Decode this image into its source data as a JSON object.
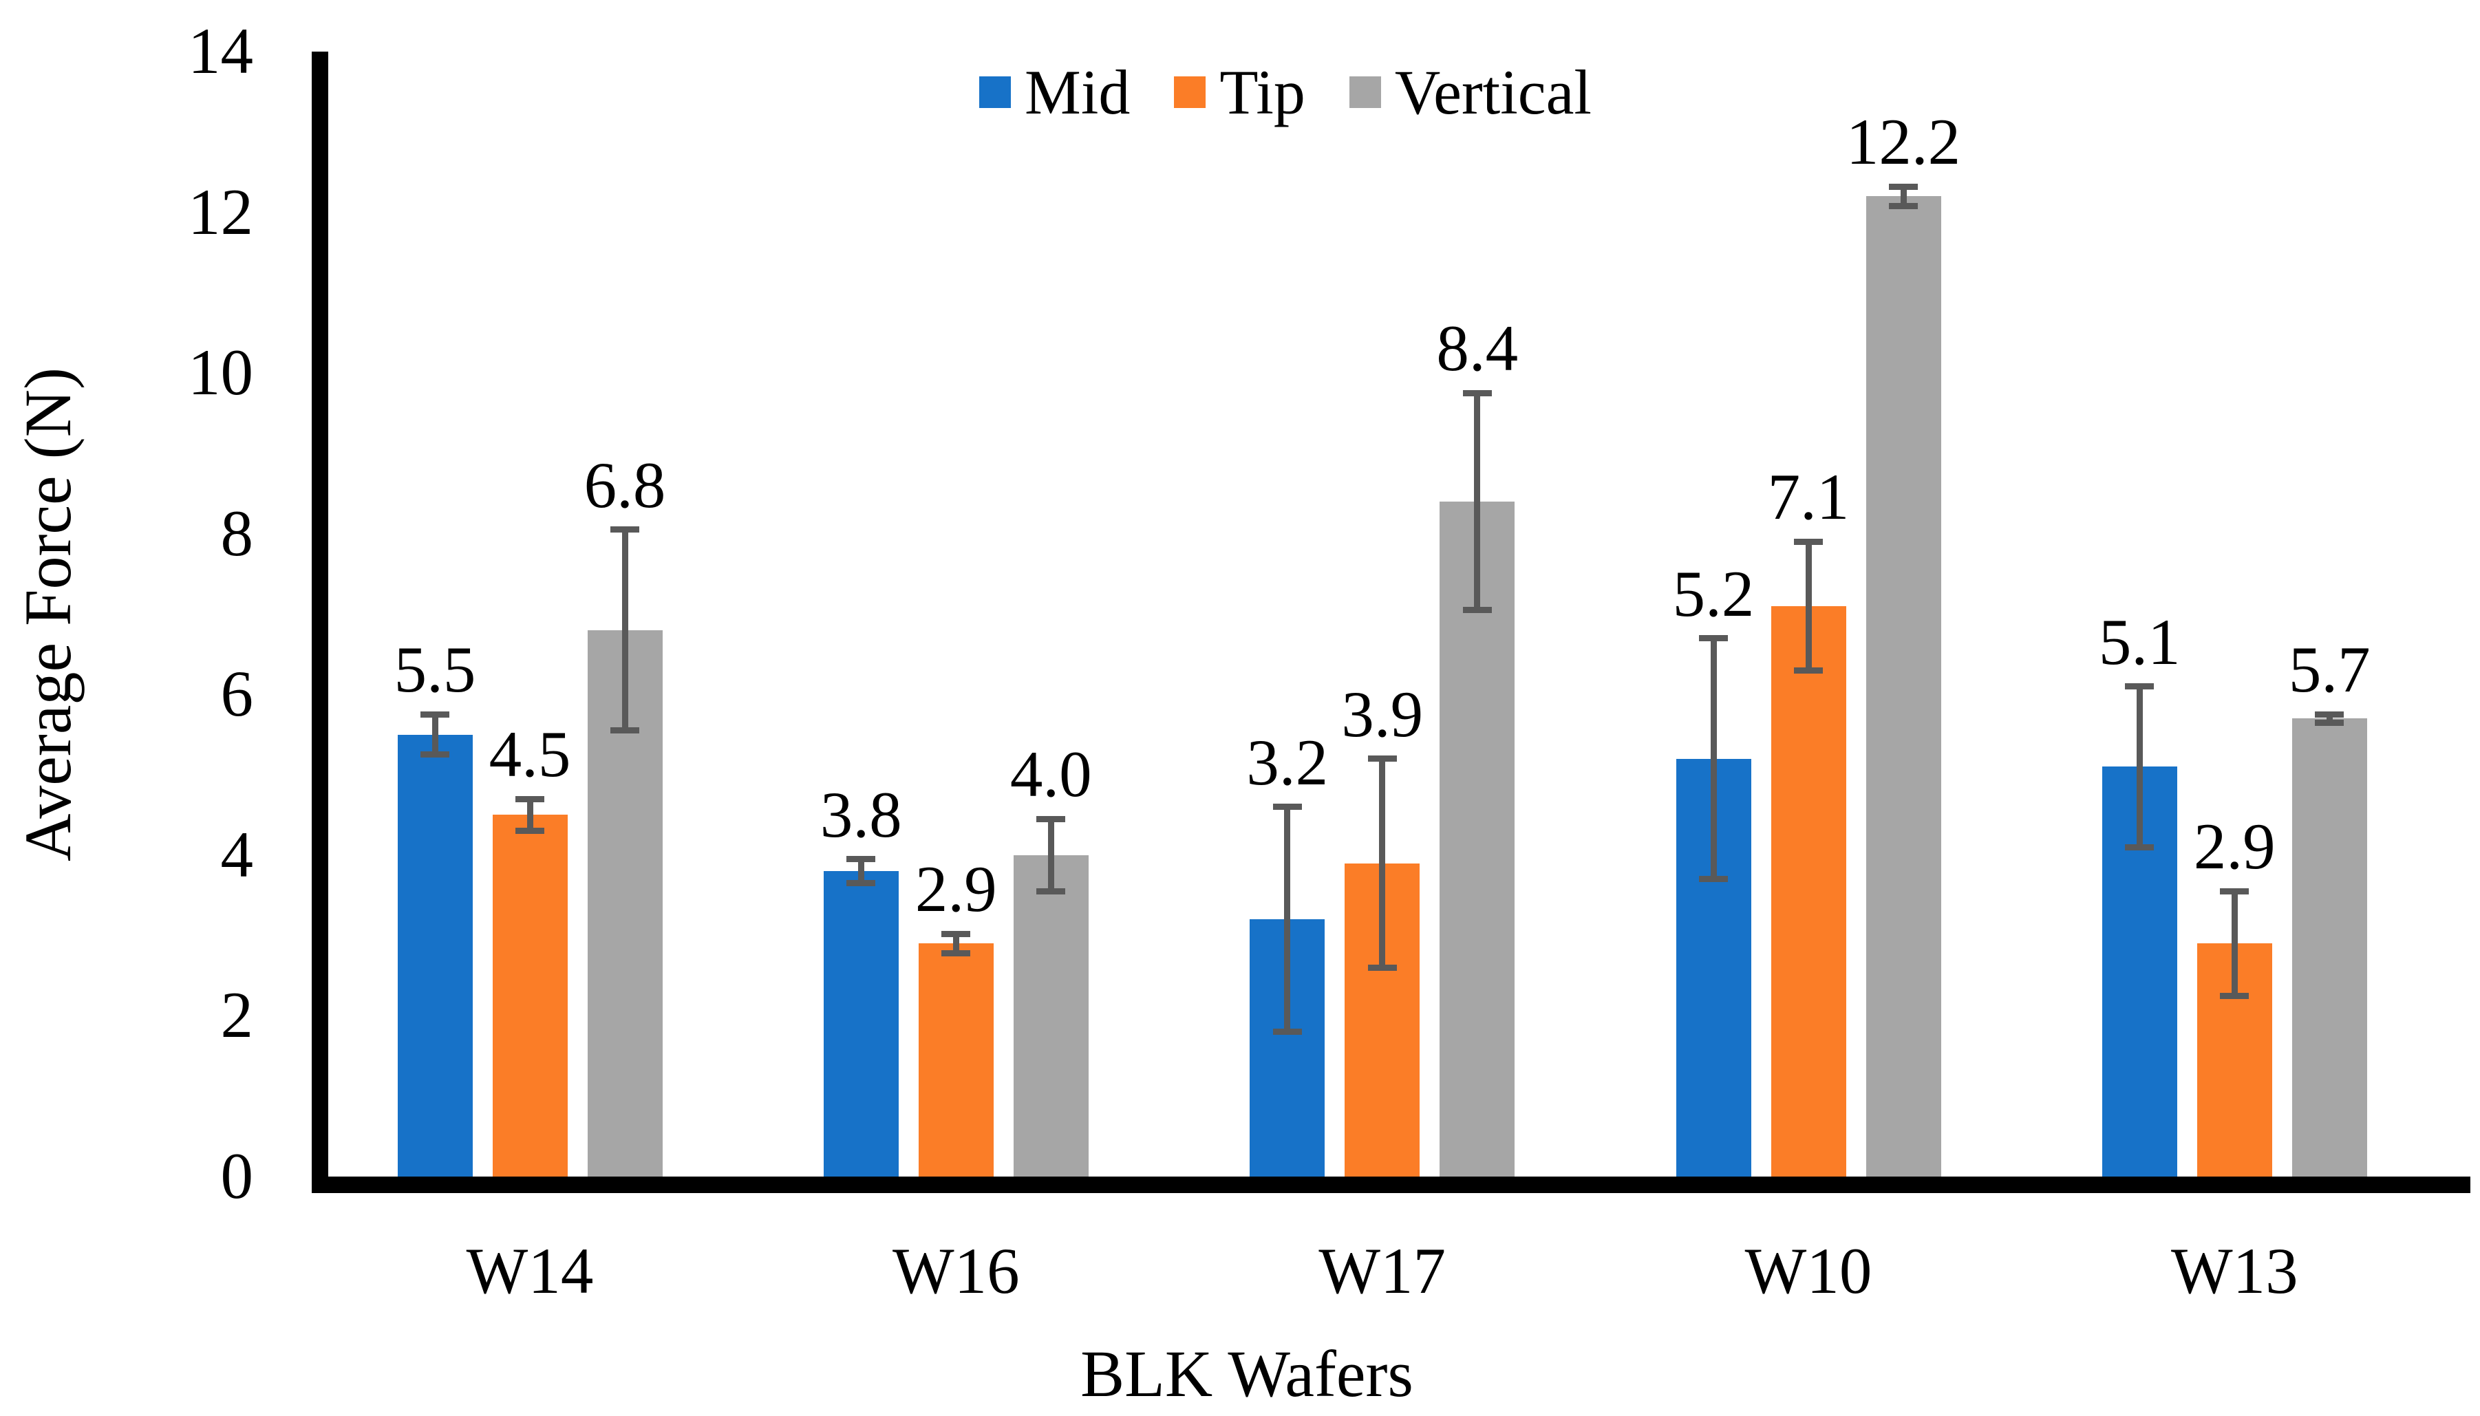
{
  "chart_data": {
    "type": "bar",
    "title": "",
    "xlabel": "BLK Wafers",
    "ylabel": "Average Force (N)",
    "ylim": [
      0,
      14
    ],
    "yticks": [
      0,
      2,
      4,
      6,
      8,
      10,
      12,
      14
    ],
    "grid": false,
    "legend_position": "top-center",
    "categories": [
      "W14",
      "W16",
      "W17",
      "W10",
      "W13"
    ],
    "series": [
      {
        "name": "Mid",
        "color": "#1772C8",
        "values": [
          5.5,
          3.8,
          3.2,
          5.2,
          5.1
        ],
        "errors": [
          0.25,
          0.15,
          1.4,
          1.5,
          1.0
        ],
        "labels": [
          "5.5",
          "3.8",
          "3.2",
          "5.2",
          "5.1"
        ]
      },
      {
        "name": "Tip",
        "color": "#FB7D27",
        "values": [
          4.5,
          2.9,
          3.9,
          7.1,
          2.9
        ],
        "errors": [
          0.2,
          0.12,
          1.3,
          0.8,
          0.65
        ],
        "labels": [
          "4.5",
          "2.9",
          "3.9",
          "7.1",
          "2.9"
        ]
      },
      {
        "name": "Vertical",
        "color": "#A6A6A6",
        "values": [
          6.8,
          4.0,
          8.4,
          12.2,
          5.7
        ],
        "errors": [
          1.25,
          0.45,
          1.35,
          0.12,
          0.05
        ],
        "labels": [
          "6.8",
          "4.0",
          "8.4",
          "12.2",
          "5.7"
        ]
      }
    ],
    "error_bar_color": "#595959",
    "axis_color": "#000000",
    "background": "#FFFFFF"
  }
}
